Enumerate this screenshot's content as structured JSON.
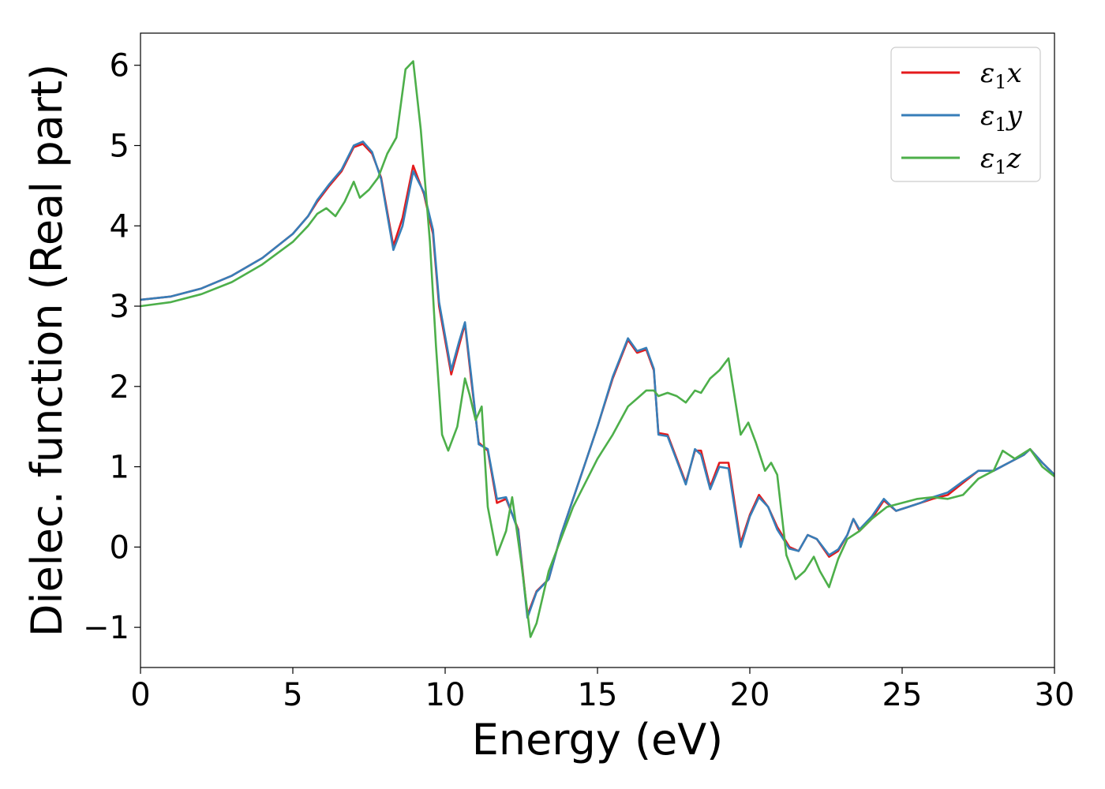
{
  "chart_data": {
    "type": "line",
    "title": "",
    "xlabel": "Energy (eV)",
    "ylabel": "Dielec. function (Real part)",
    "xlim": [
      0,
      30
    ],
    "ylim": [
      -1.5,
      6.4
    ],
    "xticks": [
      0,
      5,
      10,
      15,
      20,
      25,
      30
    ],
    "yticks": [
      -1,
      0,
      1,
      2,
      3,
      4,
      5,
      6
    ],
    "grid": false,
    "legend_position": "top-right",
    "series": [
      {
        "name": "ε1x",
        "color": "#e41a1c",
        "x": [
          0,
          1,
          2,
          3,
          4,
          5,
          5.5,
          5.8,
          6.2,
          6.6,
          7.0,
          7.3,
          7.6,
          7.9,
          8.3,
          8.6,
          8.95,
          9.3,
          9.6,
          9.8,
          10.2,
          10.45,
          10.65,
          10.85,
          11.1,
          11.4,
          11.7,
          12.0,
          12.4,
          12.7,
          13.0,
          13.4,
          13.8,
          14.2,
          14.6,
          15.0,
          15.5,
          16.0,
          16.3,
          16.6,
          16.85,
          17.0,
          17.3,
          17.6,
          17.9,
          18.2,
          18.4,
          18.7,
          19.0,
          19.3,
          19.7,
          20.0,
          20.3,
          20.6,
          20.9,
          21.3,
          21.6,
          21.9,
          22.2,
          22.6,
          22.9,
          23.2,
          23.4,
          23.6,
          24.0,
          24.4,
          24.8,
          25.2,
          25.6,
          26.0,
          26.5,
          27.0,
          27.5,
          28.0,
          28.5,
          29.0,
          29.2,
          29.6,
          30.0
        ],
        "y": [
          3.08,
          3.12,
          3.22,
          3.38,
          3.6,
          3.9,
          4.12,
          4.3,
          4.5,
          4.68,
          4.98,
          5.02,
          4.9,
          4.6,
          3.75,
          4.1,
          4.75,
          4.4,
          3.9,
          3.0,
          2.15,
          2.5,
          2.78,
          2.1,
          1.3,
          1.2,
          0.55,
          0.6,
          0.22,
          -0.85,
          -0.55,
          -0.4,
          0.15,
          0.6,
          1.05,
          1.5,
          2.1,
          2.58,
          2.42,
          2.46,
          2.2,
          1.42,
          1.4,
          1.1,
          0.8,
          1.2,
          1.2,
          0.75,
          1.05,
          1.05,
          0.05,
          0.4,
          0.65,
          0.5,
          0.25,
          0.0,
          -0.05,
          0.15,
          0.1,
          -0.12,
          -0.05,
          0.15,
          0.35,
          0.2,
          0.35,
          0.58,
          0.45,
          0.5,
          0.55,
          0.6,
          0.65,
          0.8,
          0.95,
          0.95,
          1.05,
          1.15,
          1.22,
          1.05,
          0.9
        ]
      },
      {
        "name": "ε1y",
        "color": "#377eb8",
        "x": [
          0,
          1,
          2,
          3,
          4,
          5,
          5.5,
          5.8,
          6.2,
          6.6,
          7.0,
          7.3,
          7.6,
          7.9,
          8.3,
          8.6,
          8.95,
          9.3,
          9.6,
          9.8,
          10.2,
          10.45,
          10.65,
          10.85,
          11.1,
          11.4,
          11.7,
          12.0,
          12.4,
          12.7,
          13.0,
          13.4,
          13.8,
          14.2,
          14.6,
          15.0,
          15.5,
          16.0,
          16.3,
          16.6,
          16.85,
          17.0,
          17.3,
          17.6,
          17.9,
          18.2,
          18.4,
          18.7,
          19.0,
          19.3,
          19.7,
          20.0,
          20.3,
          20.6,
          20.9,
          21.3,
          21.6,
          21.9,
          22.2,
          22.6,
          22.9,
          23.2,
          23.4,
          23.6,
          24.0,
          24.4,
          24.8,
          25.2,
          25.6,
          26.0,
          26.5,
          27.0,
          27.5,
          28.0,
          28.5,
          29.0,
          29.2,
          29.6,
          30.0
        ],
        "y": [
          3.08,
          3.12,
          3.22,
          3.38,
          3.6,
          3.9,
          4.12,
          4.32,
          4.52,
          4.7,
          5.0,
          5.05,
          4.92,
          4.58,
          3.7,
          4.0,
          4.68,
          4.42,
          3.95,
          3.05,
          2.2,
          2.55,
          2.8,
          2.15,
          1.28,
          1.22,
          0.6,
          0.62,
          0.2,
          -0.88,
          -0.56,
          -0.4,
          0.15,
          0.6,
          1.05,
          1.5,
          2.12,
          2.6,
          2.44,
          2.48,
          2.22,
          1.4,
          1.38,
          1.08,
          0.78,
          1.22,
          1.15,
          0.72,
          1.0,
          0.98,
          0.0,
          0.38,
          0.62,
          0.5,
          0.22,
          -0.02,
          -0.05,
          0.15,
          0.1,
          -0.1,
          -0.03,
          0.15,
          0.35,
          0.22,
          0.38,
          0.6,
          0.45,
          0.5,
          0.55,
          0.62,
          0.68,
          0.82,
          0.95,
          0.95,
          1.05,
          1.15,
          1.22,
          1.05,
          0.9
        ]
      },
      {
        "name": "ε1z",
        "color": "#4daf4a",
        "x": [
          0,
          1,
          2,
          3,
          4,
          5,
          5.5,
          5.8,
          6.1,
          6.4,
          6.7,
          7.0,
          7.2,
          7.5,
          7.8,
          8.1,
          8.4,
          8.7,
          8.95,
          9.2,
          9.5,
          9.7,
          9.9,
          10.1,
          10.4,
          10.65,
          10.8,
          11.0,
          11.2,
          11.4,
          11.7,
          12.0,
          12.2,
          12.5,
          12.8,
          13.0,
          13.4,
          13.8,
          14.2,
          14.6,
          15.0,
          15.5,
          16.0,
          16.3,
          16.6,
          16.85,
          17.0,
          17.3,
          17.6,
          17.9,
          18.2,
          18.4,
          18.7,
          19.0,
          19.3,
          19.7,
          19.95,
          20.2,
          20.5,
          20.7,
          20.9,
          21.2,
          21.5,
          21.8,
          22.1,
          22.3,
          22.6,
          22.9,
          23.2,
          23.6,
          24.0,
          24.5,
          25.0,
          25.5,
          26.0,
          26.5,
          27.0,
          27.5,
          28.0,
          28.3,
          28.7,
          29.2,
          29.6,
          30.0
        ],
        "y": [
          3.0,
          3.05,
          3.15,
          3.3,
          3.52,
          3.8,
          4.0,
          4.15,
          4.22,
          4.12,
          4.3,
          4.55,
          4.35,
          4.45,
          4.6,
          4.9,
          5.1,
          5.95,
          6.05,
          5.2,
          3.8,
          2.5,
          1.4,
          1.2,
          1.5,
          2.1,
          1.9,
          1.58,
          1.75,
          0.5,
          -0.1,
          0.2,
          0.62,
          -0.2,
          -1.12,
          -0.95,
          -0.3,
          0.1,
          0.5,
          0.8,
          1.1,
          1.4,
          1.75,
          1.85,
          1.95,
          1.95,
          1.88,
          1.92,
          1.88,
          1.8,
          1.95,
          1.92,
          2.1,
          2.2,
          2.35,
          1.4,
          1.55,
          1.3,
          0.95,
          1.05,
          0.9,
          -0.1,
          -0.4,
          -0.3,
          -0.12,
          -0.3,
          -0.5,
          -0.15,
          0.1,
          0.2,
          0.35,
          0.5,
          0.55,
          0.6,
          0.62,
          0.6,
          0.65,
          0.85,
          0.95,
          1.2,
          1.1,
          1.22,
          1.0,
          0.88
        ]
      }
    ]
  }
}
